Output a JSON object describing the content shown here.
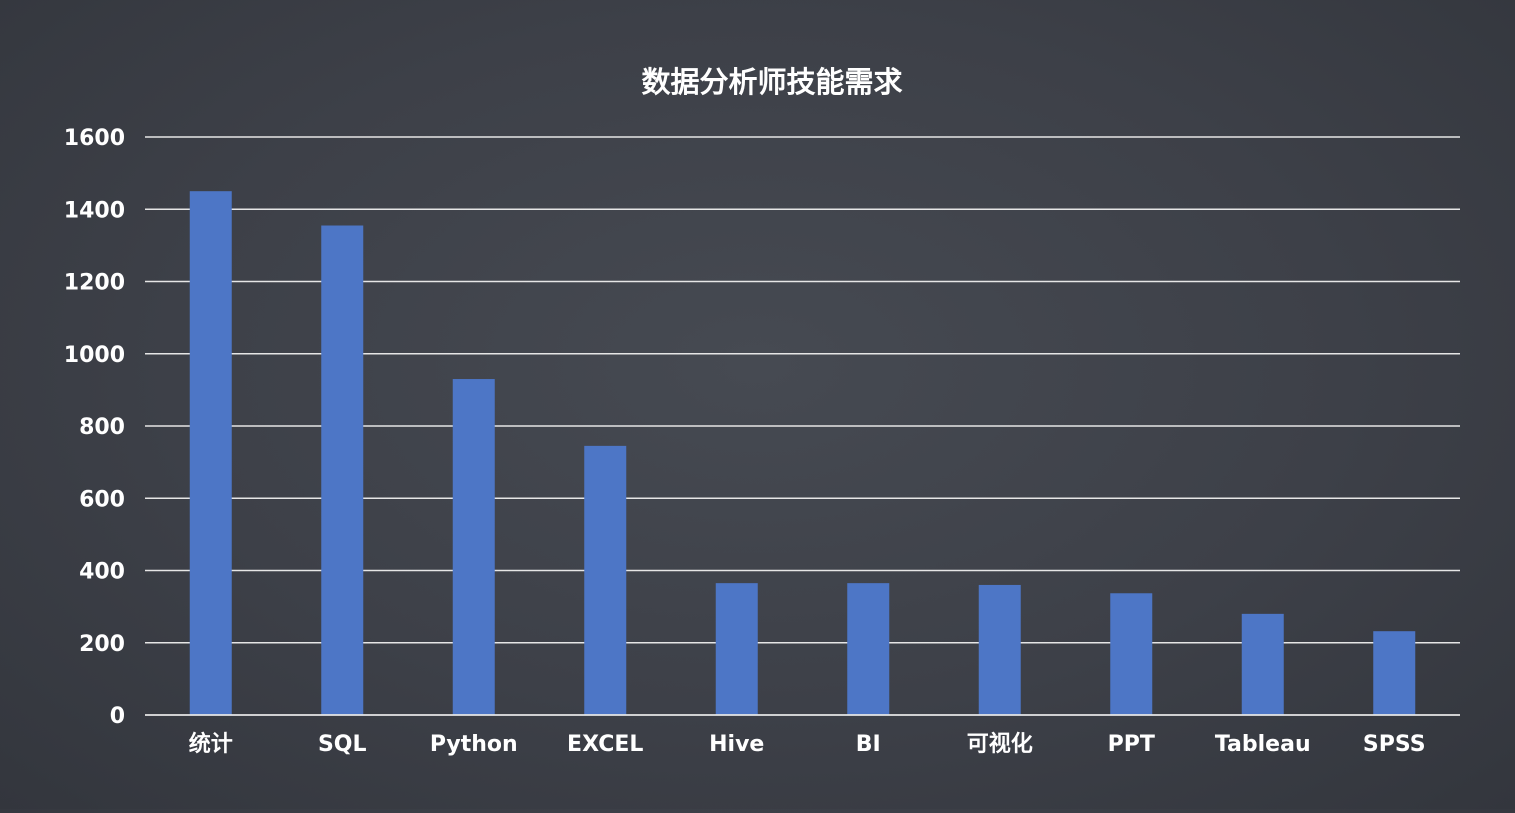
{
  "chart_data": {
    "type": "bar",
    "title": "数据分析师技能需求",
    "xlabel": "",
    "ylabel": "",
    "categories": [
      "统计",
      "SQL",
      "Python",
      "EXCEL",
      "Hive",
      "BI",
      "可视化",
      "PPT",
      "Tableau",
      "SPSS"
    ],
    "values": [
      1450,
      1355,
      930,
      745,
      365,
      365,
      360,
      337,
      280,
      232
    ],
    "ylim": [
      0,
      1600
    ],
    "yticks": [
      0,
      200,
      400,
      600,
      800,
      1000,
      1200,
      1400,
      1600
    ],
    "grid": true,
    "legend": "none",
    "colors": {
      "bar": "#4d76c6",
      "grid": "#e6e6e6",
      "text": "#ffffff",
      "background": "#3e4148"
    }
  }
}
